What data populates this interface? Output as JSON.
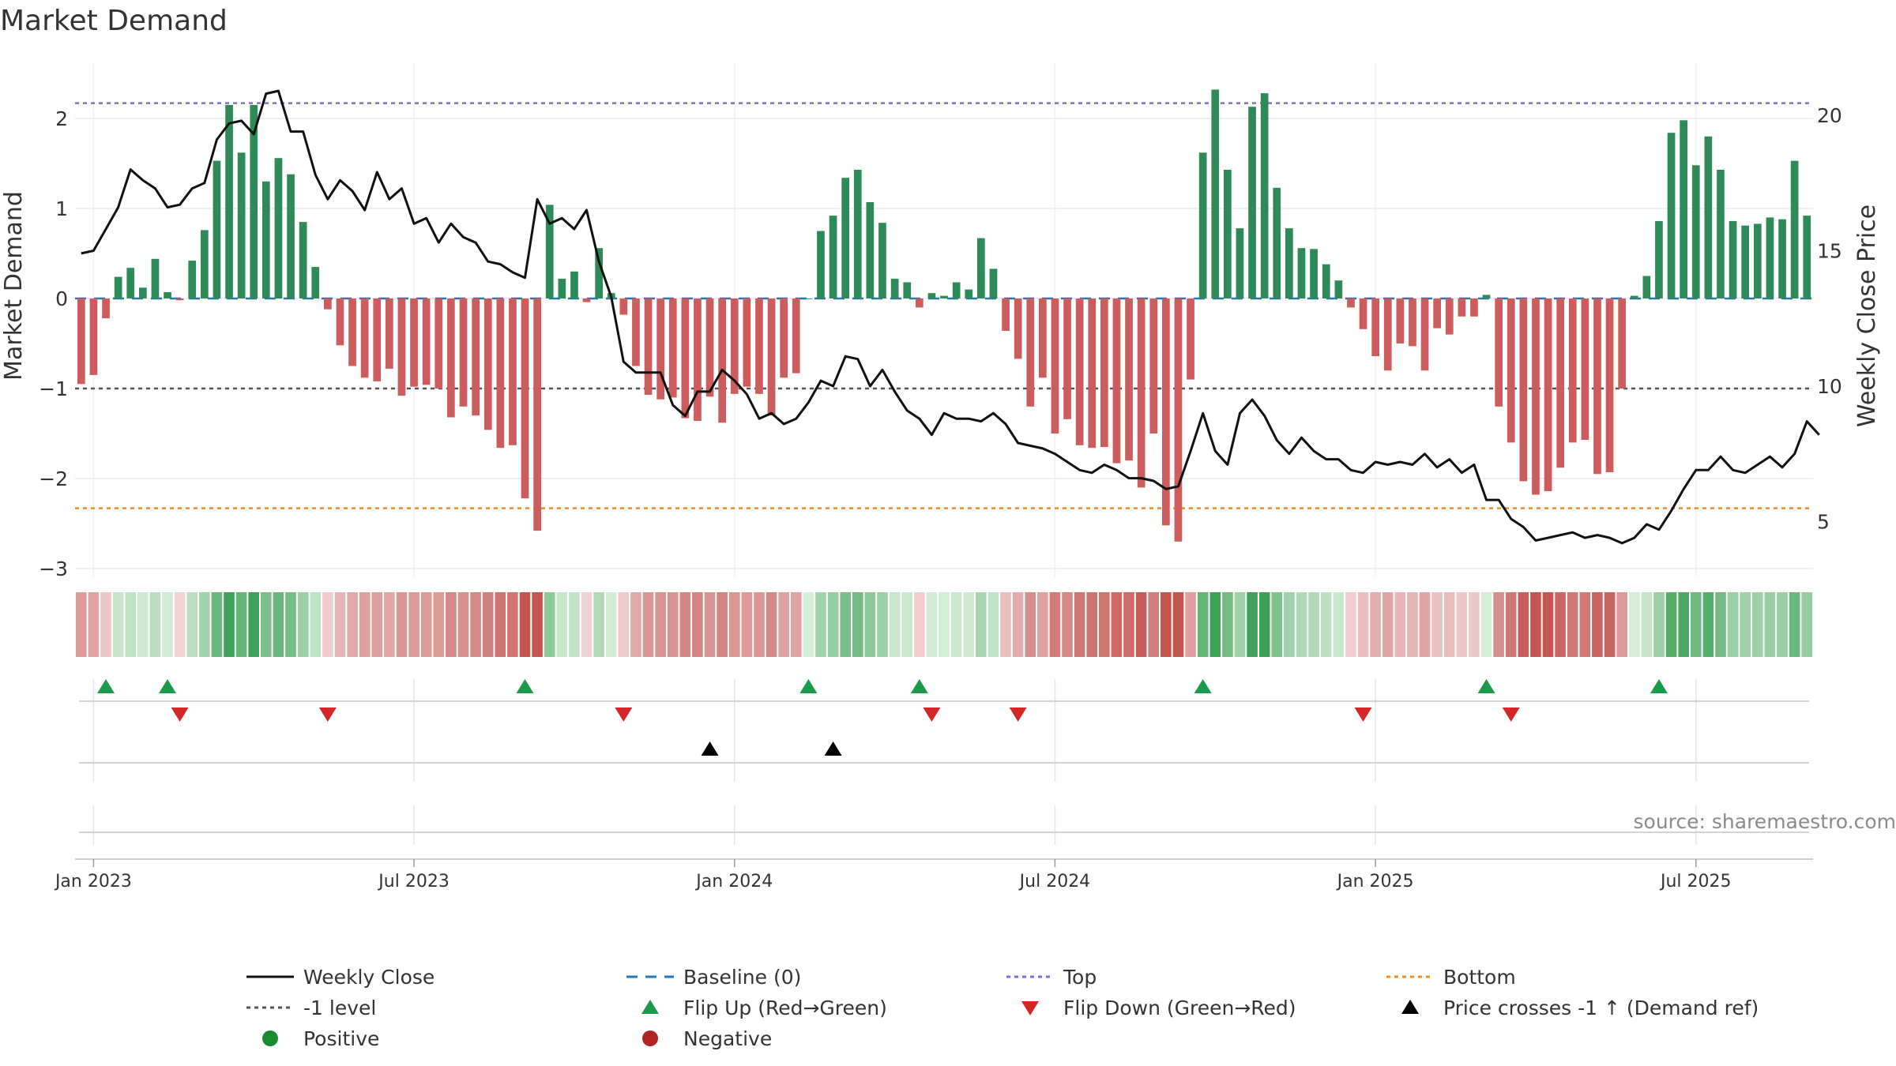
{
  "chart_data": {
    "type": "bar",
    "title": "Market Demand",
    "ylabel_left": "Market Demand",
    "ylabel_right": "Weekly Close Price",
    "ylim_left": [
      -3,
      2.5
    ],
    "ylim_right": [
      3.5,
      22.5
    ],
    "left_ticks": [
      2,
      1,
      0,
      -1,
      -2,
      -3
    ],
    "left_tick_labels": [
      "2",
      "1",
      "0",
      "−1",
      "−2",
      "−3"
    ],
    "right_ticks": [
      20,
      15,
      10,
      5
    ],
    "right_tick_labels": [
      "20",
      "15",
      "10",
      "5"
    ],
    "x_tick_labels": [
      "Jan 2023",
      "Jul 2023",
      "Jan 2024",
      "Jul 2024",
      "Jan 2025",
      "Jul 2025"
    ],
    "x_tick_weeks": [
      1,
      27,
      53,
      79,
      105,
      131
    ],
    "reference_levels": {
      "top": 2.17,
      "bottom": -2.33,
      "minus_one": -1,
      "baseline": 0
    },
    "demand_weekly": [
      -0.95,
      -0.85,
      -0.22,
      0.24,
      0.34,
      0.12,
      0.44,
      0.07,
      -0.02,
      0.42,
      0.76,
      1.53,
      2.15,
      1.62,
      2.15,
      1.3,
      1.56,
      1.38,
      0.85,
      0.35,
      -0.12,
      -0.52,
      -0.75,
      -0.88,
      -0.92,
      -0.78,
      -1.08,
      -0.98,
      -0.96,
      -1.0,
      -1.32,
      -1.2,
      -1.3,
      -1.46,
      -1.66,
      -1.63,
      -2.22,
      -2.58,
      1.04,
      0.22,
      0.3,
      -0.04,
      0.56,
      0.06,
      -0.18,
      -0.75,
      -1.07,
      -1.12,
      -1.1,
      -1.33,
      -1.36,
      -1.09,
      -1.38,
      -1.06,
      -0.98,
      -1.06,
      -1.3,
      -0.88,
      -0.83,
      0,
      0.75,
      0.92,
      1.34,
      1.43,
      1.07,
      0.84,
      0.22,
      0.18,
      -0.1,
      0.06,
      0.03,
      0.18,
      0.1,
      0.67,
      0.33,
      -0.36,
      -0.67,
      -1.2,
      -0.88,
      -1.5,
      -1.34,
      -1.63,
      -1.66,
      -1.65,
      -1.83,
      -1.8,
      -2.1,
      -1.5,
      -2.52,
      -2.7,
      -0.9,
      1.62,
      2.32,
      1.43,
      0.78,
      2.13,
      2.28,
      1.23,
      0.78,
      0.56,
      0.55,
      0.38,
      0.2,
      -0.1,
      -0.34,
      -0.64,
      -0.8,
      -0.5,
      -0.53,
      -0.8,
      -0.33,
      -0.4,
      -0.2,
      -0.2,
      0.04,
      -1.2,
      -1.6,
      -2.03,
      -2.18,
      -2.14,
      -1.88,
      -1.6,
      -1.57,
      -1.95,
      -1.93,
      -1.0,
      0.03,
      0.25,
      0.86,
      1.84,
      1.98,
      1.48,
      1.8,
      1.43,
      0.86,
      0.81,
      0.83,
      0.9,
      0.88,
      1.53,
      0.92
    ],
    "close_weekly": [
      14.9,
      15.0,
      15.8,
      16.6,
      18.0,
      17.6,
      17.3,
      16.6,
      16.7,
      17.3,
      17.5,
      19.1,
      19.7,
      19.8,
      19.3,
      20.8,
      20.9,
      19.4,
      19.4,
      17.8,
      16.9,
      17.6,
      17.2,
      16.5,
      17.9,
      16.9,
      17.3,
      16.0,
      16.2,
      15.3,
      16.0,
      15.5,
      15.3,
      14.6,
      14.5,
      14.2,
      14.0,
      16.9,
      16.0,
      16.2,
      15.8,
      16.5,
      14.6,
      13.3,
      10.9,
      10.5,
      10.5,
      10.5,
      9.3,
      8.9,
      9.8,
      9.8,
      10.6,
      10.2,
      9.7,
      8.8,
      9.0,
      8.6,
      8.8,
      9.4,
      10.2,
      10.0,
      11.1,
      11.0,
      10.0,
      10.6,
      9.8,
      9.1,
      8.8,
      8.2,
      9.0,
      8.8,
      8.8,
      8.7,
      9.0,
      8.6,
      7.9,
      7.8,
      7.7,
      7.5,
      7.2,
      6.9,
      6.8,
      7.1,
      6.9,
      6.6,
      6.6,
      6.5,
      6.2,
      6.3,
      7.6,
      9.0,
      7.6,
      7.1,
      9.0,
      9.5,
      8.9,
      8.0,
      7.5,
      8.1,
      7.6,
      7.3,
      7.3,
      6.9,
      6.8,
      7.2,
      7.1,
      7.2,
      7.1,
      7.5,
      7.0,
      7.3,
      6.8,
      7.1,
      5.8,
      5.8,
      5.1,
      4.8,
      4.3,
      4.4,
      4.5,
      4.6,
      4.4,
      4.5,
      4.4,
      4.2,
      4.4,
      4.9,
      4.7,
      5.4,
      6.2,
      6.9,
      6.9,
      7.4,
      6.9,
      6.8,
      7.1,
      7.4,
      7.0,
      7.5,
      8.7,
      8.2
    ],
    "flip_up_weeks": [
      2,
      7,
      36,
      59,
      68,
      91,
      114,
      128
    ],
    "flip_down_weeks": [
      8,
      20,
      44,
      69,
      76,
      104,
      116
    ],
    "price_cross_weeks": [
      51,
      61
    ],
    "legend": [
      {
        "label": "Weekly Close",
        "kind": "line-solid",
        "color": "#111111"
      },
      {
        "label": "Baseline (0)",
        "kind": "line-dash",
        "color": "#1f77b4"
      },
      {
        "label": "Top",
        "kind": "line-dot",
        "color": "#7b6fd6"
      },
      {
        "label": "Bottom",
        "kind": "line-dot",
        "color": "#f08c1e"
      },
      {
        "label": "-1 level",
        "kind": "line-dot",
        "color": "#555555"
      },
      {
        "label": "Flip Up (Red→Green)",
        "kind": "tri-up",
        "color": "#1a9a4a"
      },
      {
        "label": "Flip Down (Green→Red)",
        "kind": "tri-down",
        "color": "#d62728"
      },
      {
        "label": "Price crosses -1 ↑ (Demand ref)",
        "kind": "tri-up",
        "color": "#000000"
      },
      {
        "label": "Positive",
        "kind": "dot",
        "color": "#1a8a2e"
      },
      {
        "label": "Negative",
        "kind": "dot",
        "color": "#b22222"
      }
    ],
    "colors": {
      "positive_bar": "#2e8b57",
      "negative_bar": "#cd5c5c",
      "close_line": "#111111"
    }
  },
  "source": "source: sharemaestro.com"
}
